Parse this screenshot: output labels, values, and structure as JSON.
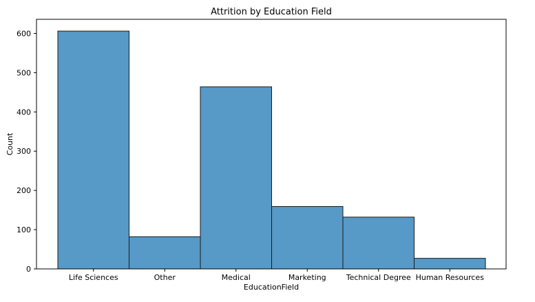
{
  "chart_data": {
    "type": "bar",
    "title": "Attrition by Education Field",
    "xlabel": "EducationField",
    "ylabel": "Count",
    "categories": [
      "Life Sciences",
      "Other",
      "Medical",
      "Marketing",
      "Technical Degree",
      "Human Resources"
    ],
    "values": [
      606,
      82,
      464,
      159,
      132,
      27
    ],
    "ylim": [
      0,
      636
    ],
    "yticks": [
      0,
      100,
      200,
      300,
      400,
      500,
      600
    ],
    "grid": false,
    "legend": "none",
    "colors": {
      "bar_fill": "#5799c7",
      "bar_edge": "#1a1a1a",
      "axis": "#000000"
    }
  }
}
